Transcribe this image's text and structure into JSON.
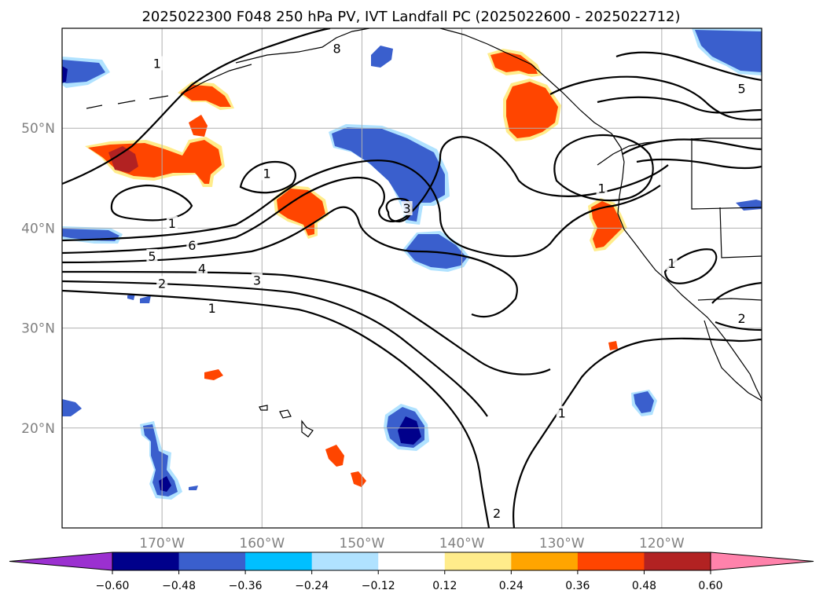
{
  "title": "2025022300 F048 250 hPa PV, IVT Landfall PC (2025022600 - 2025022712)",
  "map": {
    "lon_range": [
      -180,
      -110
    ],
    "lat_range": [
      10,
      60
    ],
    "lon_ticks": [
      {
        "value": -170,
        "label": "170°W"
      },
      {
        "value": -160,
        "label": "160°W"
      },
      {
        "value": -150,
        "label": "150°W"
      },
      {
        "value": -140,
        "label": "140°W"
      },
      {
        "value": -130,
        "label": "130°W"
      },
      {
        "value": -120,
        "label": "120°W"
      }
    ],
    "lat_ticks": [
      {
        "value": 50,
        "label": "50°N"
      },
      {
        "value": 40,
        "label": "40°N"
      },
      {
        "value": 30,
        "label": "30°N"
      },
      {
        "value": 20,
        "label": "20°N"
      }
    ],
    "gridlines": true
  },
  "contour_labels": [
    {
      "text": "1",
      "lon": -170.5,
      "lat": 56.5
    },
    {
      "text": "8",
      "lon": -152.5,
      "lat": 58.0
    },
    {
      "text": "5",
      "lon": -112.0,
      "lat": 54.0
    },
    {
      "text": "1",
      "lon": -159.5,
      "lat": 45.5
    },
    {
      "text": "1",
      "lon": -169.0,
      "lat": 40.5
    },
    {
      "text": "1",
      "lon": -126.0,
      "lat": 44.0
    },
    {
      "text": "3",
      "lon": -145.5,
      "lat": 42.0
    },
    {
      "text": "6",
      "lon": -167.0,
      "lat": 38.3
    },
    {
      "text": "5",
      "lon": -171.0,
      "lat": 37.2
    },
    {
      "text": "4",
      "lon": -166.0,
      "lat": 36.0
    },
    {
      "text": "3",
      "lon": -160.5,
      "lat": 34.8
    },
    {
      "text": "2",
      "lon": -170.0,
      "lat": 34.5
    },
    {
      "text": "1",
      "lon": -165.0,
      "lat": 32.0
    },
    {
      "text": "1",
      "lon": -119.0,
      "lat": 36.5
    },
    {
      "text": "2",
      "lon": -112.0,
      "lat": 31.0
    },
    {
      "text": "1",
      "lon": -130.0,
      "lat": 21.5
    },
    {
      "text": "2",
      "lon": -136.5,
      "lat": 11.5
    }
  ],
  "colorbar": {
    "ticks": [
      "−0.60",
      "−0.48",
      "−0.36",
      "−0.24",
      "−0.12",
      "0.12",
      "0.24",
      "0.36",
      "0.48",
      "0.60"
    ],
    "colors": [
      "#9b30d0",
      "#00008b",
      "#3a5fcd",
      "#00bfff",
      "#b0e2ff",
      "#ffffff",
      "#ffec8b",
      "#ffa500",
      "#ff4500",
      "#b22222",
      "#ff82ab"
    ],
    "extend": "both"
  }
}
